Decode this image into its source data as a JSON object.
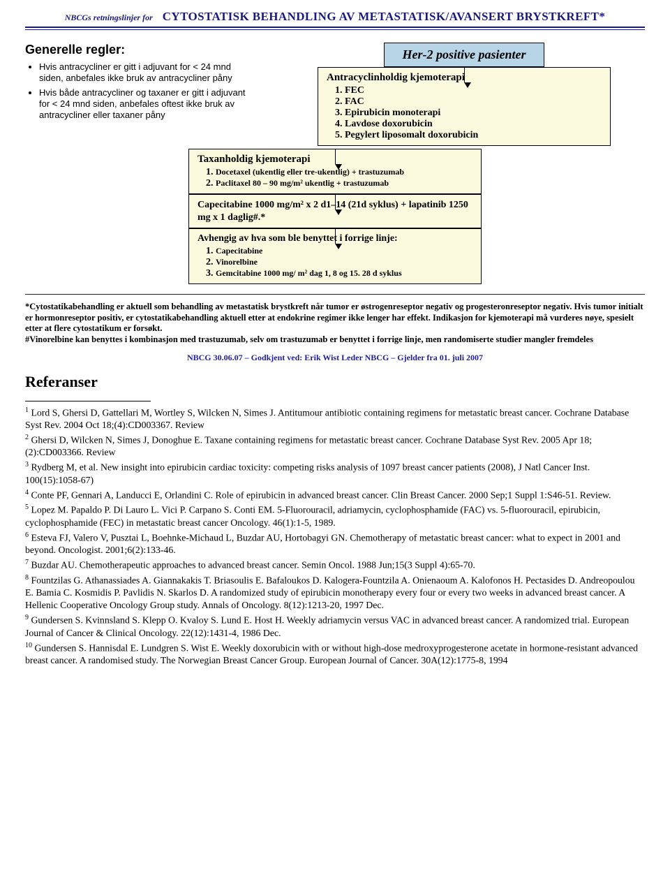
{
  "header": {
    "sub": "NBCGs retningslinjer for",
    "main": "CYTOSTATISK BEHANDLING AV METASTATISK/AVANSERT BRYSTKREFT*",
    "colors": {
      "rule": "#1a1a7a",
      "text": "#1a1a7a"
    }
  },
  "rules": {
    "title": "Generelle regler:",
    "items": [
      "Hvis antracycliner er gitt i adjuvant for < 24 mnd siden, anbefales ikke bruk av antracycliner påny",
      "Hvis både antracycliner og  taxaner er gitt i adjuvant for < 24 mnd siden, anbefales oftest ikke bruk av antracycliner eller taxaner påny"
    ]
  },
  "flow": {
    "start": "Her-2 positive pasienter",
    "box1": {
      "title": "Antracyclinholdig kjemoterapi",
      "items": [
        "FEC",
        "FAC",
        "Epirubicin monoterapi",
        "Lavdose doxorubicin",
        "Pegylert liposomalt doxorubicin"
      ]
    },
    "box2": {
      "title": "Taxanholdig kjemoterapi",
      "items": [
        "Docetaxel (ukentlig eller tre-ukentlig) + trastuzumab",
        "Paclitaxel 80 – 90 mg/m² ukentlig + trastuzumab"
      ]
    },
    "box3": {
      "body": "Capecitabine 1000 mg/m² x 2 d1–14 (21d syklus) + lapatinib 1250 mg x 1 daglig#.*"
    },
    "box4": {
      "title": "Avhengig av hva som ble benyttet i forrige linje:",
      "items": [
        "Capecitabine",
        "Vinorelbine",
        "Gemcitabine 1000 mg/ m² dag 1, 8 og 15. 28 d syklus"
      ]
    },
    "colors": {
      "start_bg": "#b7d5e6",
      "box_bg": "#fbfade",
      "border": "#000000"
    }
  },
  "footnote": "*Cytostatikabehandling er aktuell som behandling av metastatisk brystkreft når tumor er østrogenreseptor negativ og progesteronreseptor negativ. Hvis tumor initialt er hormonreseptor positiv, er cytostatikabehandling aktuell etter at endokrine regimer ikke lenger har effekt. Indikasjon for kjemoterapi må vurderes nøye, spesielt etter at flere cytostatikum er forsøkt.\n#Vinorelbine kan benyttes i kombinasjon med trastuzumab, selv om trastuzumab er benyttet i forrige linje, men randomiserte studier mangler fremdeles",
  "approval": "NBCG 30.06.07 – Godkjent ved: Erik Wist Leder NBCG – Gjelder fra 01. juli 2007",
  "refs_title": "Referanser",
  "references": [
    "Lord S, Ghersi D, Gattellari M, Wortley S, Wilcken N, Simes J. Antitumour antibiotic containing regimens for metastatic breast cancer. Cochrane Database Syst Rev. 2004 Oct 18;(4):CD003367. Review",
    "Ghersi D, Wilcken N, Simes J, Donoghue E.   Taxane containing regimens for metastatic breast cancer. Cochrane Database Syst Rev. 2005 Apr 18;(2):CD003366. Review",
    "Rydberg M, et al. New insight into epirubicin cardiac toxicity: competing risks analysis of 1097 breast cancer patients (2008), J Natl Cancer Inst.  100(15):1058-67)",
    "Conte PF, Gennari A, Landucci E, Orlandini C. Role of epirubicin in advanced breast cancer. Clin Breast Cancer. 2000 Sep;1 Suppl 1:S46-51. Review.",
    "Lopez M. Papaldo P. Di Lauro L. Vici P. Carpano S. Conti EM. 5-Fluorouracil, adriamycin, cyclophosphamide (FAC) vs. 5-fluorouracil, epirubicin, cyclophosphamide (FEC) in metastatic breast cancer Oncology.  46(1):1-5, 1989.",
    "Esteva FJ, Valero V, Pusztai L, Boehnke-Michaud L, Buzdar AU, Hortobagyi GN. Chemotherapy of metastatic breast cancer: what to expect in 2001 and beyond. Oncologist.  2001;6(2):133-46.",
    "Buzdar AU. Chemotherapeutic approaches to advanced breast cancer. Semin Oncol.  1988 Jun;15(3 Suppl 4):65-70.",
    "Fountzilas G. Athanassiades A. Giannakakis T. Briasoulis E. Bafaloukos D. Kalogera-Fountzila A. Onienaoum A. Kalofonos H. Pectasides D. Andreopoulou E. Bamia C. Kosmidis P. Pavlidis N. Skarlos D. A randomized study of epirubicin monotherapy every four or every two weeks in advanced breast cancer. A Hellenic Cooperative Oncology Group study.  Annals of Oncology.  8(12):1213-20, 1997 Dec.",
    "Gundersen S. Kvinnsland S. Klepp O. Kvaloy S. Lund E. Host H. Weekly adriamycin versus VAC in advanced breast cancer. A randomized trial. European Journal of Cancer & Clinical Oncology.  22(12):1431-4, 1986 Dec.",
    "Gundersen S. Hannisdal E. Lundgren S. Wist E. Weekly doxorubicin with or without high-dose medroxyprogesterone acetate in hormone-resistant advanced breast cancer. A randomised study.  The Norwegian Breast Cancer Group.  European Journal of Cancer.  30A(12):1775-8, 1994"
  ]
}
